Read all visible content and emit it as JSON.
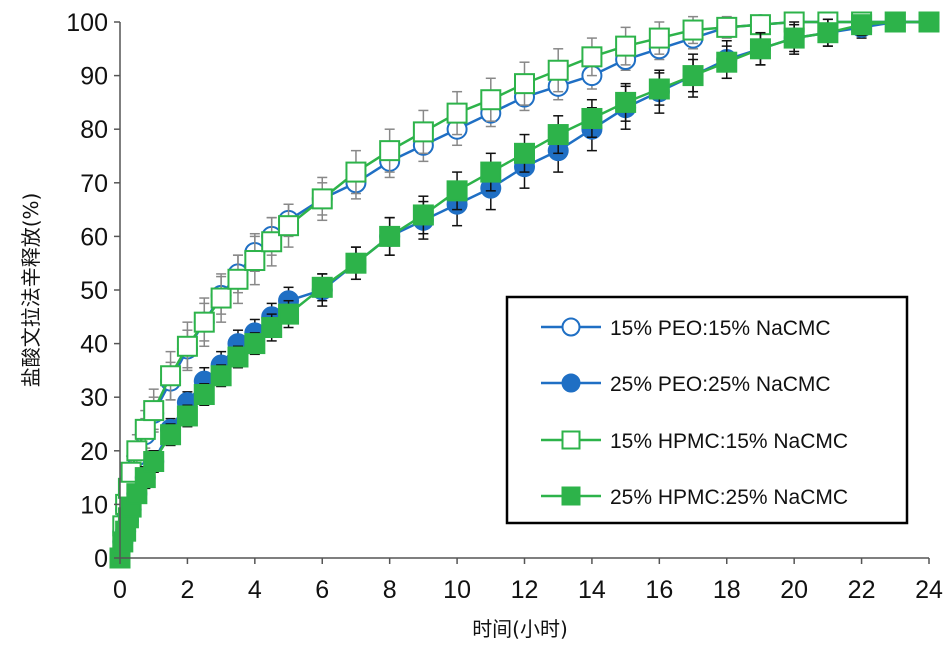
{
  "chart_data": {
    "type": "line",
    "xlabel": "时间(小时)",
    "ylabel": "盐酸文拉法辛释放(%)",
    "xlim": [
      0,
      24
    ],
    "ylim": [
      0,
      100
    ],
    "x_ticks": [
      "0",
      "2",
      "4",
      "6",
      "8",
      "10",
      "12",
      "14",
      "16",
      "18",
      "20",
      "22",
      "24"
    ],
    "y_ticks": [
      "0",
      "10",
      "20",
      "30",
      "40",
      "50",
      "60",
      "70",
      "80",
      "90",
      "100"
    ],
    "grid": false,
    "legend_position": "lower-right",
    "series": [
      {
        "name": "15% PEO:15% NaCMC",
        "color": "#1f6fc4",
        "marker": "circle",
        "filled": false,
        "x": [
          0,
          0.083,
          0.167,
          0.25,
          0.33,
          0.5,
          0.75,
          1,
          1.5,
          2,
          2.5,
          3,
          3.5,
          4,
          4.5,
          5,
          6,
          7,
          8,
          9,
          10,
          11,
          12,
          13,
          14,
          15,
          16,
          17,
          18,
          19,
          20,
          21,
          22,
          23,
          24
        ],
        "y": [
          0,
          5,
          9,
          12,
          15,
          19,
          23,
          27,
          33,
          39,
          44,
          49,
          53,
          57,
          60,
          63,
          67,
          70,
          74,
          77,
          80,
          83,
          86,
          88,
          90,
          93,
          95,
          97,
          99,
          99.5,
          100,
          100,
          100,
          100,
          100
        ],
        "err": [
          0,
          1,
          1.5,
          2,
          2,
          2.5,
          3,
          3,
          3.5,
          3.5,
          3.5,
          3.5,
          3.5,
          3.5,
          3.5,
          3,
          3,
          3,
          3,
          3,
          3,
          2.5,
          2.5,
          2.5,
          2.5,
          2,
          2,
          2,
          1.5,
          1,
          1,
          1,
          1,
          1,
          1
        ]
      },
      {
        "name": "25% PEO:25% NaCMC",
        "color": "#1f6fc4",
        "marker": "circle",
        "filled": true,
        "x": [
          0,
          0.083,
          0.167,
          0.25,
          0.33,
          0.5,
          0.75,
          1,
          1.5,
          2,
          2.5,
          3,
          3.5,
          4,
          4.5,
          5,
          6,
          7,
          8,
          9,
          10,
          11,
          12,
          13,
          14,
          15,
          16,
          17,
          18,
          19,
          20,
          21,
          22,
          23,
          24
        ],
        "y": [
          0,
          3,
          5,
          7,
          9,
          12,
          15,
          18,
          24,
          29,
          33,
          36,
          40,
          42,
          45,
          48,
          50,
          55,
          60,
          63,
          66,
          69,
          73,
          76,
          80,
          84,
          87,
          90,
          93,
          95,
          97,
          98,
          99,
          100,
          100
        ],
        "err": [
          0,
          1,
          1,
          1.5,
          1.5,
          1.5,
          2,
          2,
          2,
          2,
          2.5,
          2.5,
          2.5,
          2.5,
          2.5,
          2.5,
          3,
          3,
          3.5,
          3.5,
          4,
          4,
          4,
          4,
          4,
          4,
          4,
          4,
          3.5,
          3,
          3,
          2.5,
          2,
          1.5,
          1.5
        ]
      },
      {
        "name": "15% HPMC:15% NaCMC",
        "color": "#2db34a",
        "marker": "square",
        "filled": false,
        "x": [
          0,
          0.083,
          0.167,
          0.25,
          0.33,
          0.5,
          0.75,
          1,
          1.5,
          2,
          2.5,
          3,
          3.5,
          4,
          4.5,
          5,
          6,
          7,
          8,
          9,
          10,
          11,
          12,
          13,
          14,
          15,
          16,
          17,
          18,
          19,
          20,
          21,
          22,
          23,
          24
        ],
        "y": [
          0,
          6,
          10,
          13,
          16,
          20,
          24,
          27.5,
          34,
          39.5,
          44,
          48.5,
          52,
          55.5,
          59,
          62,
          67,
          72,
          76,
          79.5,
          83,
          85.5,
          88.5,
          91,
          93.5,
          95.5,
          97,
          98.5,
          99,
          99.5,
          100,
          100,
          100,
          100,
          100
        ],
        "err": [
          0,
          1.5,
          2,
          2.5,
          3,
          3,
          3.5,
          4,
          4.5,
          4.5,
          4.5,
          4.5,
          4.5,
          4.5,
          4.5,
          4,
          4,
          4,
          4,
          4,
          4,
          4,
          4,
          4,
          3.5,
          3.5,
          3,
          2.5,
          2,
          1.5,
          1,
          1,
          1,
          1,
          1
        ]
      },
      {
        "name": "25% HPMC:25% NaCMC",
        "color": "#2db34a",
        "marker": "square",
        "filled": true,
        "x": [
          0,
          0.083,
          0.167,
          0.25,
          0.33,
          0.5,
          0.75,
          1,
          1.5,
          2,
          2.5,
          3,
          3.5,
          4,
          4.5,
          5,
          6,
          7,
          8,
          9,
          10,
          11,
          12,
          13,
          14,
          15,
          16,
          17,
          18,
          19,
          20,
          21,
          22,
          23,
          24
        ],
        "y": [
          0,
          3,
          5,
          7.5,
          9.5,
          12,
          15,
          18,
          23,
          26.5,
          30.5,
          34,
          37.5,
          40,
          43,
          45.5,
          50.5,
          55,
          60,
          64,
          68.5,
          72,
          75.5,
          79,
          82,
          85,
          87.5,
          90,
          92.5,
          95,
          97,
          98,
          99.5,
          100,
          100
        ],
        "err": [
          0,
          1,
          1,
          1.5,
          1.5,
          1.5,
          2,
          2,
          2,
          2,
          2,
          2,
          2,
          2,
          2.5,
          2.5,
          2.5,
          3,
          3.5,
          3.5,
          3.5,
          3.5,
          3.5,
          3.5,
          3.5,
          3.5,
          3,
          3,
          3,
          3,
          2.5,
          2.5,
          2,
          1.5,
          1.5
        ]
      }
    ]
  }
}
